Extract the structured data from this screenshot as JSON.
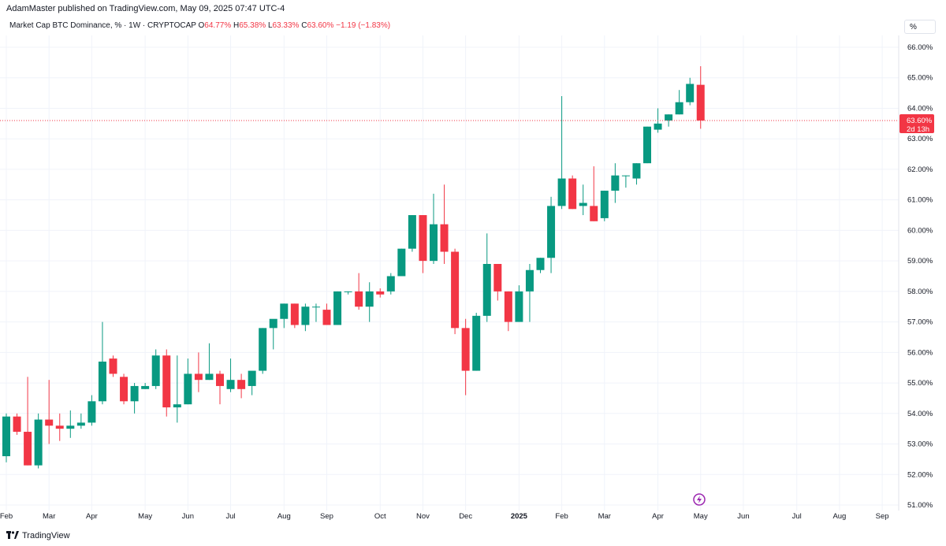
{
  "header": {
    "published": "AdamMaster published on TradingView.com, May 09, 2025 07:47 UTC-4"
  },
  "legend": {
    "symbol": "Market Cap BTC Dominance, % · 1W · CRYPTOCAP",
    "o_key": "O",
    "o_val": "64.77%",
    "h_key": "H",
    "h_val": "65.38%",
    "l_key": "L",
    "l_val": "63.33%",
    "c_key": "C",
    "c_val": "63.60%",
    "change": "−1.19 (−1.83%)"
  },
  "scale_mode": "%",
  "price_label": {
    "value": "63.60%",
    "countdown": "2d 13h"
  },
  "footer": {
    "brand": "TradingView"
  },
  "colors": {
    "up": "#089981",
    "down": "#f23645",
    "grid": "#f0f3fa",
    "text": "#131722"
  },
  "chart_data": {
    "type": "candlestick",
    "ylim": [
      51.0,
      66.0
    ],
    "y_ticks": [
      "51.00%",
      "52.00%",
      "53.00%",
      "54.00%",
      "55.00%",
      "56.00%",
      "57.00%",
      "58.00%",
      "59.00%",
      "60.00%",
      "61.00%",
      "62.00%",
      "63.00%",
      "64.00%",
      "65.00%",
      "66.00%"
    ],
    "x_ticks": [
      {
        "label": "Feb",
        "i": 0
      },
      {
        "label": "Mar",
        "i": 4
      },
      {
        "label": "Apr",
        "i": 8
      },
      {
        "label": "May",
        "i": 13
      },
      {
        "label": "Jun",
        "i": 17
      },
      {
        "label": "Jul",
        "i": 21
      },
      {
        "label": "Aug",
        "i": 26
      },
      {
        "label": "Sep",
        "i": 30
      },
      {
        "label": "Oct",
        "i": 35
      },
      {
        "label": "Nov",
        "i": 39
      },
      {
        "label": "Dec",
        "i": 43
      },
      {
        "label": "2025",
        "i": 48
      },
      {
        "label": "Feb",
        "i": 52
      },
      {
        "label": "Mar",
        "i": 56
      },
      {
        "label": "Apr",
        "i": 61
      },
      {
        "label": "May",
        "i": 65
      },
      {
        "label": "Jun",
        "i": 69
      },
      {
        "label": "Jul",
        "i": 74
      },
      {
        "label": "Aug",
        "i": 78
      },
      {
        "label": "Sep",
        "i": 82
      }
    ],
    "last_price": 63.6,
    "candles": [
      {
        "o": 52.6,
        "h": 54.0,
        "l": 52.4,
        "c": 53.9
      },
      {
        "o": 53.9,
        "h": 54.0,
        "l": 53.3,
        "c": 53.4
      },
      {
        "o": 53.4,
        "h": 55.2,
        "l": 52.3,
        "c": 52.3
      },
      {
        "o": 52.3,
        "h": 54.0,
        "l": 52.2,
        "c": 53.8
      },
      {
        "o": 53.8,
        "h": 55.1,
        "l": 53.0,
        "c": 53.6
      },
      {
        "o": 53.6,
        "h": 54.0,
        "l": 53.1,
        "c": 53.5
      },
      {
        "o": 53.5,
        "h": 54.1,
        "l": 53.2,
        "c": 53.6
      },
      {
        "o": 53.6,
        "h": 54.0,
        "l": 53.5,
        "c": 53.7
      },
      {
        "o": 53.7,
        "h": 54.6,
        "l": 53.6,
        "c": 54.4
      },
      {
        "o": 54.4,
        "h": 57.0,
        "l": 54.3,
        "c": 55.7
      },
      {
        "o": 55.8,
        "h": 55.9,
        "l": 55.2,
        "c": 55.3
      },
      {
        "o": 55.2,
        "h": 55.3,
        "l": 54.3,
        "c": 54.4
      },
      {
        "o": 54.4,
        "h": 55.0,
        "l": 54.0,
        "c": 54.9
      },
      {
        "o": 54.8,
        "h": 55.0,
        "l": 54.8,
        "c": 54.9
      },
      {
        "o": 54.9,
        "h": 56.1,
        "l": 54.8,
        "c": 55.9
      },
      {
        "o": 55.9,
        "h": 56.1,
        "l": 53.9,
        "c": 54.2
      },
      {
        "o": 54.2,
        "h": 55.9,
        "l": 53.7,
        "c": 54.3
      },
      {
        "o": 54.3,
        "h": 55.8,
        "l": 54.3,
        "c": 55.3
      },
      {
        "o": 55.3,
        "h": 56.0,
        "l": 54.7,
        "c": 55.1
      },
      {
        "o": 55.1,
        "h": 56.3,
        "l": 55.1,
        "c": 55.3
      },
      {
        "o": 55.3,
        "h": 55.4,
        "l": 54.3,
        "c": 54.9
      },
      {
        "o": 54.8,
        "h": 55.8,
        "l": 54.7,
        "c": 55.1
      },
      {
        "o": 55.1,
        "h": 55.3,
        "l": 54.5,
        "c": 54.8
      },
      {
        "o": 54.9,
        "h": 55.3,
        "l": 54.6,
        "c": 55.4
      },
      {
        "o": 55.4,
        "h": 56.8,
        "l": 55.3,
        "c": 56.8
      },
      {
        "o": 56.8,
        "h": 57.0,
        "l": 56.1,
        "c": 57.1
      },
      {
        "o": 57.1,
        "h": 57.6,
        "l": 56.8,
        "c": 57.6
      },
      {
        "o": 57.6,
        "h": 57.6,
        "l": 56.8,
        "c": 56.9
      },
      {
        "o": 56.9,
        "h": 57.6,
        "l": 56.7,
        "c": 57.5
      },
      {
        "o": 57.5,
        "h": 57.6,
        "l": 57.0,
        "c": 57.5
      },
      {
        "o": 57.4,
        "h": 57.6,
        "l": 56.9,
        "c": 56.9
      },
      {
        "o": 56.9,
        "h": 58.0,
        "l": 56.9,
        "c": 58.0
      },
      {
        "o": 58.0,
        "h": 58.0,
        "l": 57.9,
        "c": 58.0
      },
      {
        "o": 58.0,
        "h": 58.6,
        "l": 57.4,
        "c": 57.5
      },
      {
        "o": 57.5,
        "h": 58.3,
        "l": 57.0,
        "c": 58.0
      },
      {
        "o": 58.0,
        "h": 58.1,
        "l": 57.8,
        "c": 57.9
      },
      {
        "o": 58.0,
        "h": 58.6,
        "l": 57.9,
        "c": 58.5
      },
      {
        "o": 58.5,
        "h": 59.4,
        "l": 58.6,
        "c": 59.4
      },
      {
        "o": 59.4,
        "h": 60.5,
        "l": 59.3,
        "c": 60.5
      },
      {
        "o": 60.5,
        "h": 60.5,
        "l": 58.6,
        "c": 59.0
      },
      {
        "o": 59.0,
        "h": 61.2,
        "l": 58.9,
        "c": 60.2
      },
      {
        "o": 60.2,
        "h": 61.5,
        "l": 58.9,
        "c": 59.3
      },
      {
        "o": 59.3,
        "h": 59.4,
        "l": 56.6,
        "c": 56.8
      },
      {
        "o": 56.8,
        "h": 57.1,
        "l": 54.6,
        "c": 55.4
      },
      {
        "o": 55.4,
        "h": 57.3,
        "l": 55.4,
        "c": 57.2
      },
      {
        "o": 57.2,
        "h": 59.9,
        "l": 57.0,
        "c": 58.9
      },
      {
        "o": 58.9,
        "h": 58.9,
        "l": 57.7,
        "c": 58.0
      },
      {
        "o": 58.0,
        "h": 58.0,
        "l": 56.7,
        "c": 57.0
      },
      {
        "o": 57.0,
        "h": 58.2,
        "l": 57.0,
        "c": 58.0
      },
      {
        "o": 58.0,
        "h": 58.9,
        "l": 57.0,
        "c": 58.7
      },
      {
        "o": 58.7,
        "h": 59.1,
        "l": 58.6,
        "c": 59.1
      },
      {
        "o": 59.1,
        "h": 61.1,
        "l": 58.6,
        "c": 60.8
      },
      {
        "o": 60.8,
        "h": 64.4,
        "l": 60.7,
        "c": 61.7
      },
      {
        "o": 61.7,
        "h": 61.8,
        "l": 60.7,
        "c": 60.7
      },
      {
        "o": 60.8,
        "h": 61.5,
        "l": 60.5,
        "c": 60.9
      },
      {
        "o": 60.8,
        "h": 62.1,
        "l": 60.3,
        "c": 60.3
      },
      {
        "o": 60.4,
        "h": 61.3,
        "l": 60.3,
        "c": 61.3
      },
      {
        "o": 61.3,
        "h": 62.2,
        "l": 60.9,
        "c": 61.8
      },
      {
        "o": 61.8,
        "h": 61.8,
        "l": 61.4,
        "c": 61.8
      },
      {
        "o": 61.7,
        "h": 62.2,
        "l": 61.5,
        "c": 62.2
      },
      {
        "o": 62.2,
        "h": 63.4,
        "l": 62.2,
        "c": 63.4
      },
      {
        "o": 63.3,
        "h": 64.0,
        "l": 63.2,
        "c": 63.5
      },
      {
        "o": 63.6,
        "h": 63.8,
        "l": 63.4,
        "c": 63.8
      },
      {
        "o": 63.8,
        "h": 64.6,
        "l": 63.8,
        "c": 64.2
      },
      {
        "o": 64.2,
        "h": 65.0,
        "l": 64.1,
        "c": 64.8
      },
      {
        "o": 64.77,
        "h": 65.38,
        "l": 63.33,
        "c": 63.6
      }
    ]
  }
}
